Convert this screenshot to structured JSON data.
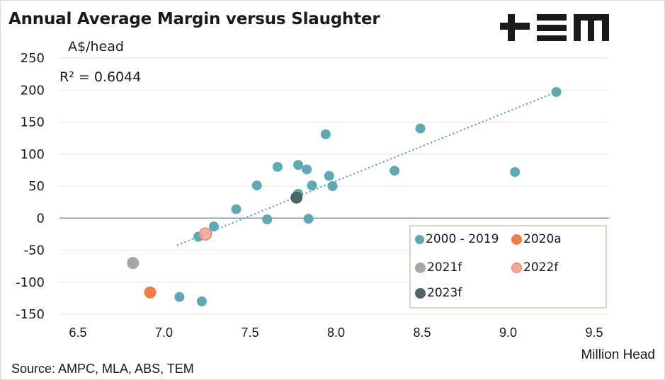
{
  "brand": {
    "logo_text": "+≡m",
    "logo_name": "TEM"
  },
  "chart_data": {
    "type": "scatter",
    "title": "Annual Average Margin versus Slaughter",
    "ylabel": "A$/head",
    "xlabel": "Million Head",
    "source": "Source: AMPC, MLA, ABS, TEM",
    "annotation": "R² = 0.6044",
    "xlim": [
      6.5,
      9.5
    ],
    "ylim": [
      -150,
      250
    ],
    "xticks": [
      "6.5",
      "7.0",
      "7.5",
      "8.0",
      "8.5",
      "9.0",
      "9.5"
    ],
    "yticks": [
      "250",
      "200",
      "150",
      "100",
      "50",
      "0",
      "-50",
      "-100",
      "-150"
    ],
    "grid": true,
    "legend_position": "bottom-right",
    "series": [
      {
        "name": "2000 - 2019",
        "color": "#5ea9b3",
        "points": [
          [
            7.2,
            -29
          ],
          [
            7.29,
            -13
          ],
          [
            7.42,
            14
          ],
          [
            7.54,
            51
          ],
          [
            7.6,
            -2
          ],
          [
            7.66,
            80
          ],
          [
            7.78,
            83
          ],
          [
            7.83,
            76
          ],
          [
            7.86,
            51
          ],
          [
            7.78,
            38
          ],
          [
            7.84,
            -1
          ],
          [
            7.94,
            131
          ],
          [
            7.96,
            66
          ],
          [
            7.98,
            50
          ],
          [
            8.34,
            74
          ],
          [
            8.49,
            140
          ],
          [
            9.04,
            72
          ],
          [
            9.28,
            197
          ],
          [
            7.09,
            -123
          ],
          [
            7.22,
            -130
          ]
        ]
      },
      {
        "name": "2020a",
        "color": "#f47c48",
        "points": [
          [
            6.92,
            -116
          ]
        ]
      },
      {
        "name": "2021f",
        "color": "#a6a6a6",
        "points": [
          [
            6.82,
            -70
          ]
        ]
      },
      {
        "name": "2022f",
        "color": "#f9a592",
        "stroke": "#f47c6a",
        "points": [
          [
            7.24,
            -25
          ]
        ]
      },
      {
        "name": "2023f",
        "color": "#4f6466",
        "points": [
          [
            7.77,
            32
          ]
        ]
      }
    ],
    "trendline": {
      "type": "linear",
      "color": "#5ea9b3",
      "style": "dotted",
      "x_start": 7.08,
      "y_start": -42,
      "x_end": 9.28,
      "y_end": 197
    }
  },
  "colors": {
    "grid": "#ebeae0",
    "zero_line": "#8c9a9c",
    "legend_border": "#d6d8c2"
  }
}
